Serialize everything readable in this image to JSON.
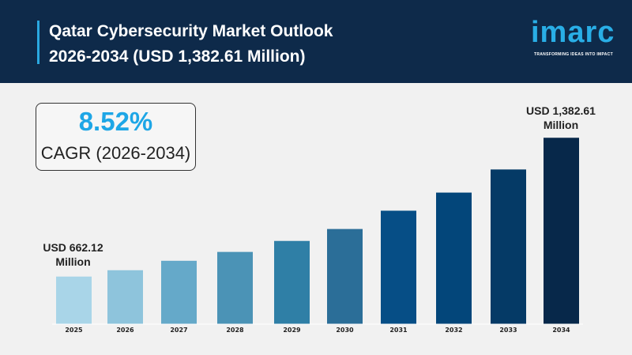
{
  "header": {
    "title_line1": "Qatar Cybersecurity Market Outlook",
    "title_line2": "2026-2034 (USD 1,382.61 Million)",
    "logo": "imarc",
    "tagline": "TRANSFORMING IDEAS INTO IMPACT"
  },
  "cagr": {
    "value": "8.52%",
    "label": "CAGR (2026-2034)"
  },
  "annotations": {
    "start_line1": "USD 662.12",
    "start_line2": "Million",
    "end_line1": "USD 1,382.61",
    "end_line2": "Million"
  },
  "colors": {
    "header": "#0e2a4a",
    "accent": "#2aa8e0",
    "cagr": "#1ea6e6"
  },
  "chart_data": {
    "type": "bar",
    "title": "Qatar Cybersecurity Market Outlook 2026-2034 (USD 1,382.61 Million)",
    "categories": [
      "2025",
      "2026",
      "2027",
      "2028",
      "2029",
      "2030",
      "2031",
      "2032",
      "2033",
      "2034"
    ],
    "values": [
      662.12,
      695,
      744,
      790,
      847,
      909,
      1004,
      1098,
      1218,
      1382.61
    ],
    "colors": [
      "#a9d5e8",
      "#8ec4dc",
      "#65a9c9",
      "#4b93b6",
      "#2f7fa6",
      "#2b6e98",
      "#064e86",
      "#03467a",
      "#053a66",
      "#07284a"
    ],
    "ylim": [
      415,
      1400
    ],
    "xlabel": "",
    "ylabel": "",
    "grid": false
  }
}
